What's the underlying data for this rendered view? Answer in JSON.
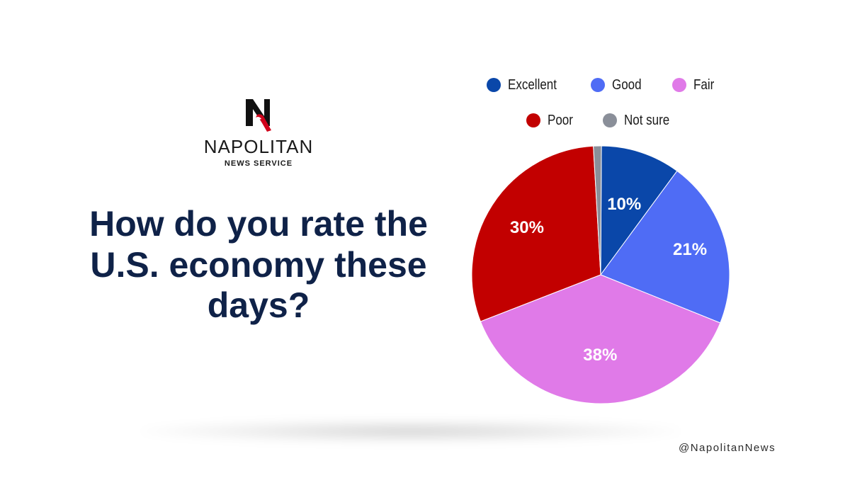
{
  "brand": {
    "name": "NAPOLITAN",
    "subtitle": "NEWS SERVICE",
    "handle": "@NapolitanNews",
    "logo_icon": "napolitan-n-bird-logo"
  },
  "question": "How do you rate the U.S. economy these days?",
  "colors": {
    "title": "#0f2248",
    "excellent": "#0a47a9",
    "good": "#4f6cf5",
    "fair": "#e07ae8",
    "poor": "#c20000",
    "not_sure": "#8a8f99"
  },
  "chart_data": {
    "type": "pie",
    "title": "How do you rate the U.S. economy these days?",
    "legend_position": "top",
    "slices": [
      {
        "label": "Excellent",
        "value": 10,
        "display": "10%",
        "color": "#0a47a9"
      },
      {
        "label": "Good",
        "value": 21,
        "display": "21%",
        "color": "#4f6cf5"
      },
      {
        "label": "Fair",
        "value": 38,
        "display": "38%",
        "color": "#e07ae8"
      },
      {
        "label": "Poor",
        "value": 30,
        "display": "30%",
        "color": "#c20000"
      },
      {
        "label": "Not sure",
        "value": 1,
        "display": "",
        "color": "#8a8f99"
      }
    ]
  }
}
